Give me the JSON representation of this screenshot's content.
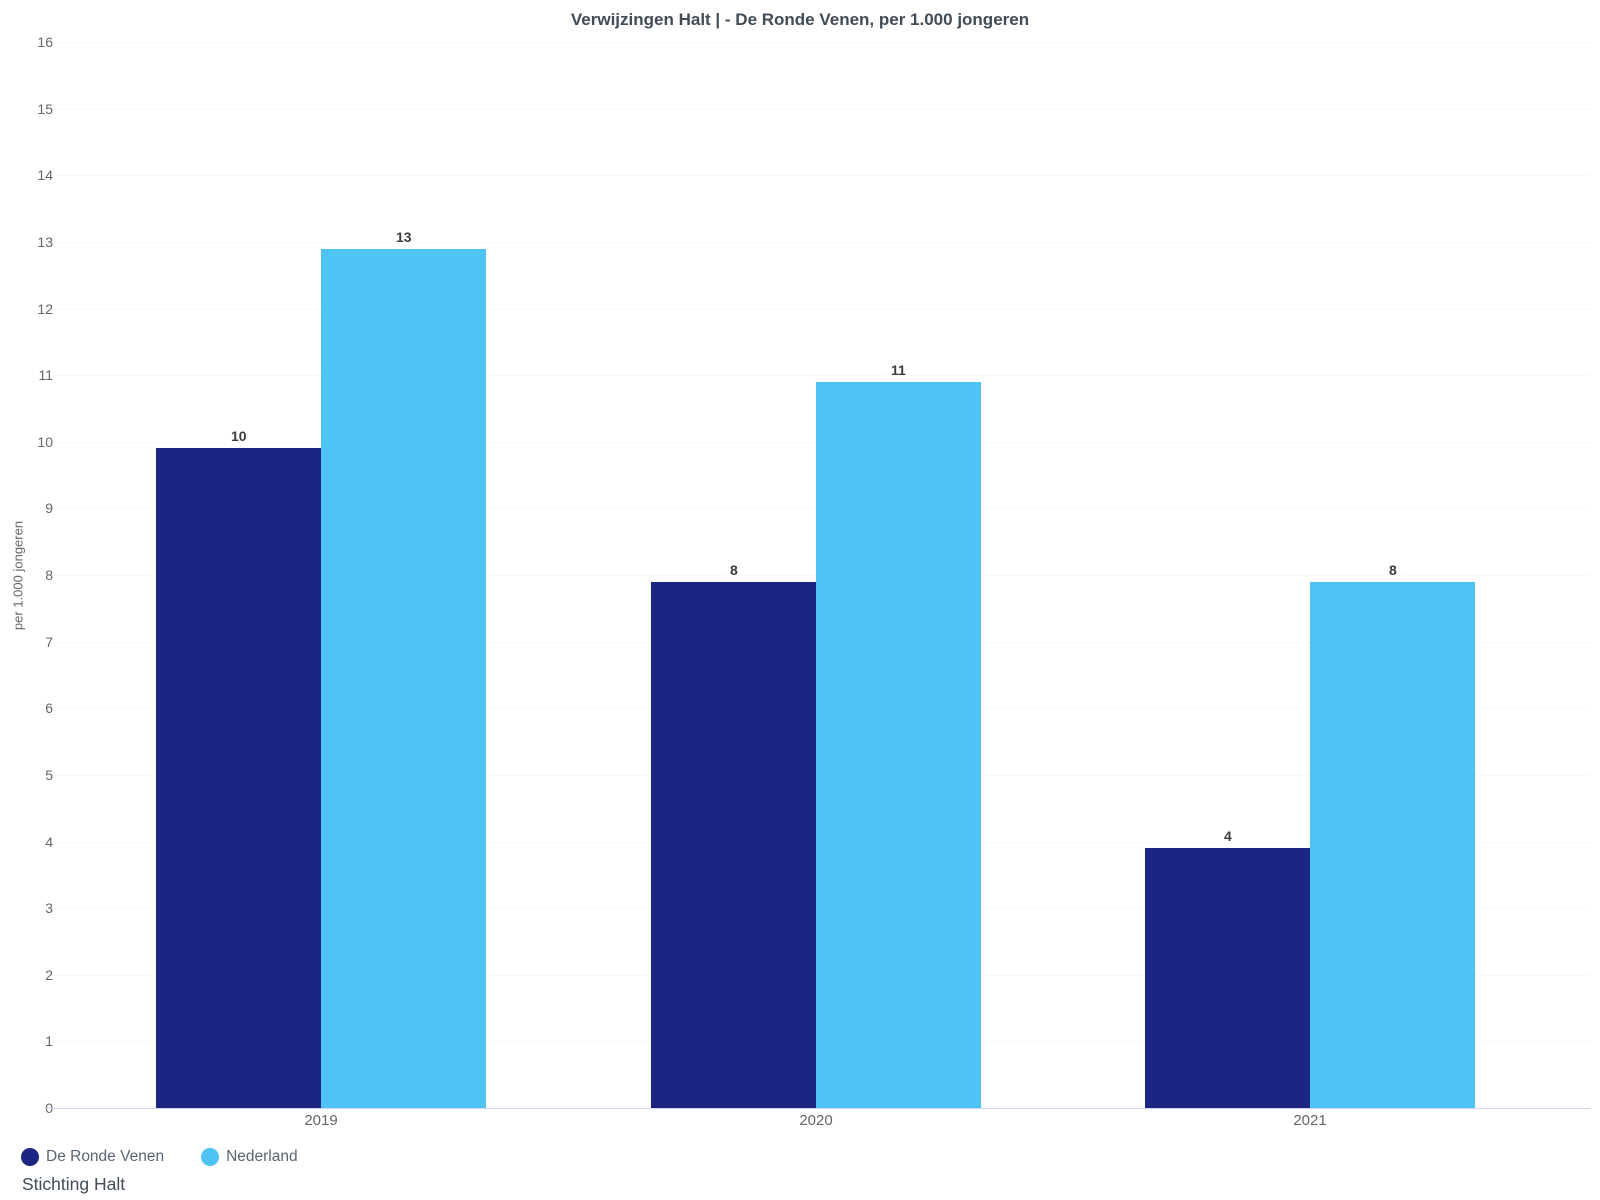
{
  "title": "Verwijzingen Halt | - De Ronde Venen, per 1.000 jongeren",
  "source": "Stichting Halt",
  "chart_data": {
    "type": "bar",
    "title": "Verwijzingen Halt | - De Ronde Venen, per 1.000 jongeren",
    "categories": [
      "2019",
      "2020",
      "2021"
    ],
    "series": [
      {
        "name": "De Ronde Venen",
        "color": "#1d2583",
        "values": [
          9.9,
          7.9,
          3.9
        ],
        "labels": [
          "10",
          "8",
          "4"
        ]
      },
      {
        "name": "Nederland",
        "color": "#4ec3f4",
        "values": [
          12.9,
          10.9,
          7.9
        ],
        "labels": [
          "13",
          "11",
          "8"
        ]
      }
    ],
    "xlabel": "",
    "ylabel": "per 1.000 jongeren",
    "ylim": [
      0,
      16
    ],
    "ytick_step": 1,
    "yticks": [
      0,
      1,
      2,
      3,
      4,
      5,
      6,
      7,
      8,
      9,
      10,
      11,
      12,
      13,
      14,
      15,
      16
    ],
    "grid": "faint-horizontal",
    "legend_position": "bottom-left",
    "axis_line_color": "#ccd6eb",
    "gridline_color": "#f8f8f8",
    "tick_label_color": "#666666",
    "value_label_color": "#3c3c3c",
    "title_color": "#414c56"
  }
}
